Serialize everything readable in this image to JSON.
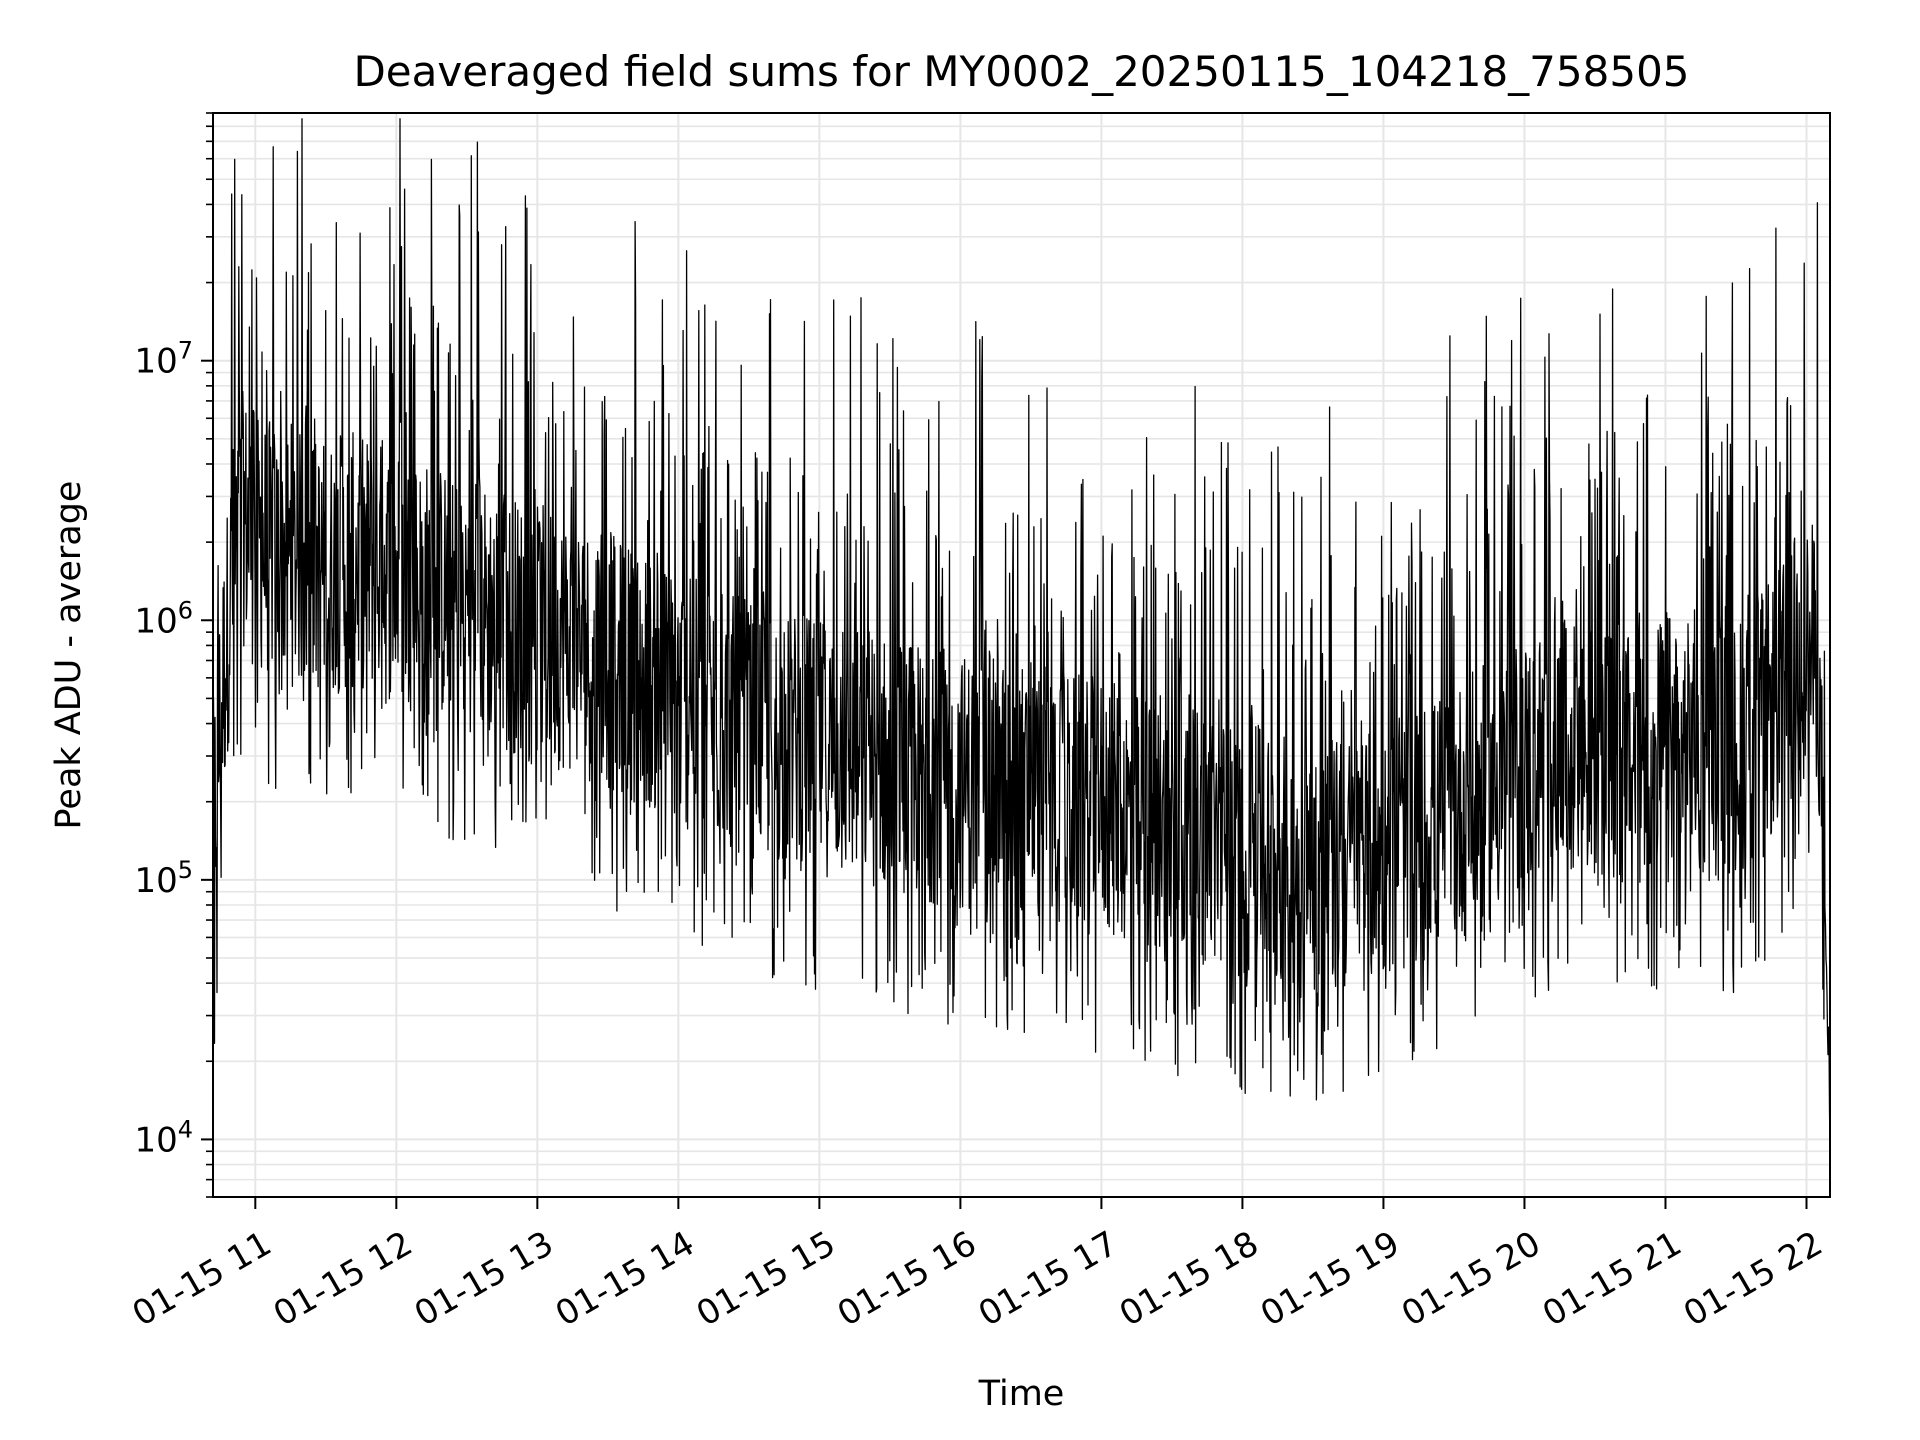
{
  "chart_data": {
    "type": "line",
    "title": "Deaveraged field sums for MY0002_20250115_104218_758505",
    "xlabel": "Time",
    "ylabel": "Peak ADU - average",
    "y_scale": "log",
    "ylim": [
      6000,
      90000000
    ],
    "xlim": [
      "2025-01-15 10:42",
      "2025-01-15 22:10"
    ],
    "grid": true,
    "grid_color": "#e6e6e6",
    "line_color": "#000000",
    "x_tick_labels": [
      "01-15 11",
      "01-15 12",
      "01-15 13",
      "01-15 14",
      "01-15 15",
      "01-15 16",
      "01-15 17",
      "01-15 18",
      "01-15 19",
      "01-15 20",
      "01-15 21",
      "01-15 22"
    ],
    "x_ticks": [
      "2025-01-15 11:00",
      "2025-01-15 12:00",
      "2025-01-15 13:00",
      "2025-01-15 14:00",
      "2025-01-15 15:00",
      "2025-01-15 16:00",
      "2025-01-15 17:00",
      "2025-01-15 18:00",
      "2025-01-15 19:00",
      "2025-01-15 20:00",
      "2025-01-15 21:00",
      "2025-01-15 22:00"
    ],
    "y_ticks": [
      {
        "base": "10",
        "exp": "4",
        "value": 10000
      },
      {
        "base": "10",
        "exp": "5",
        "value": 100000
      },
      {
        "base": "10",
        "exp": "6",
        "value": 1000000
      },
      {
        "base": "10",
        "exp": "7",
        "value": 10000000
      }
    ],
    "series": [
      {
        "x": [
          "2025-01-15 10:42",
          "2025-01-15 10:45",
          "2025-01-15 10:50",
          "2025-01-15 10:55",
          "2025-01-15 11:00",
          "2025-01-15 11:10",
          "2025-01-15 11:20",
          "2025-01-15 11:30",
          "2025-01-15 11:45",
          "2025-01-15 12:00",
          "2025-01-15 12:15",
          "2025-01-15 12:30",
          "2025-01-15 12:45",
          "2025-01-15 13:00",
          "2025-01-15 13:15",
          "2025-01-15 13:30",
          "2025-01-15 13:45",
          "2025-01-15 14:00",
          "2025-01-15 14:15",
          "2025-01-15 14:30",
          "2025-01-15 14:45",
          "2025-01-15 15:00",
          "2025-01-15 15:15",
          "2025-01-15 15:30",
          "2025-01-15 15:45",
          "2025-01-15 16:00",
          "2025-01-15 16:15",
          "2025-01-15 16:30",
          "2025-01-15 16:45",
          "2025-01-15 17:00",
          "2025-01-15 17:15",
          "2025-01-15 17:30",
          "2025-01-15 17:45",
          "2025-01-15 18:00",
          "2025-01-15 18:15",
          "2025-01-15 18:30",
          "2025-01-15 18:45",
          "2025-01-15 19:00",
          "2025-01-15 19:15",
          "2025-01-15 19:30",
          "2025-01-15 19:45",
          "2025-01-15 20:00",
          "2025-01-15 20:15",
          "2025-01-15 20:30",
          "2025-01-15 20:45",
          "2025-01-15 21:00",
          "2025-01-15 21:15",
          "2025-01-15 21:30",
          "2025-01-15 21:45",
          "2025-01-15 22:00",
          "2025-01-15 22:05",
          "2025-01-15 22:10"
        ],
        "y": [
          150000,
          400000,
          1500000,
          2500000,
          2000000,
          1800000,
          1700000,
          1600000,
          1700000,
          1500000,
          1300000,
          1200000,
          1000000,
          900000,
          800000,
          700000,
          600000,
          500000,
          420000,
          380000,
          350000,
          330000,
          300000,
          280000,
          260000,
          240000,
          230000,
          220000,
          200000,
          190000,
          170000,
          150000,
          140000,
          130000,
          120000,
          110000,
          115000,
          120000,
          150000,
          180000,
          220000,
          280000,
          320000,
          300000,
          280000,
          350000,
          300000,
          320000,
          450000,
          800000,
          700000,
          12000
        ]
      }
    ]
  }
}
